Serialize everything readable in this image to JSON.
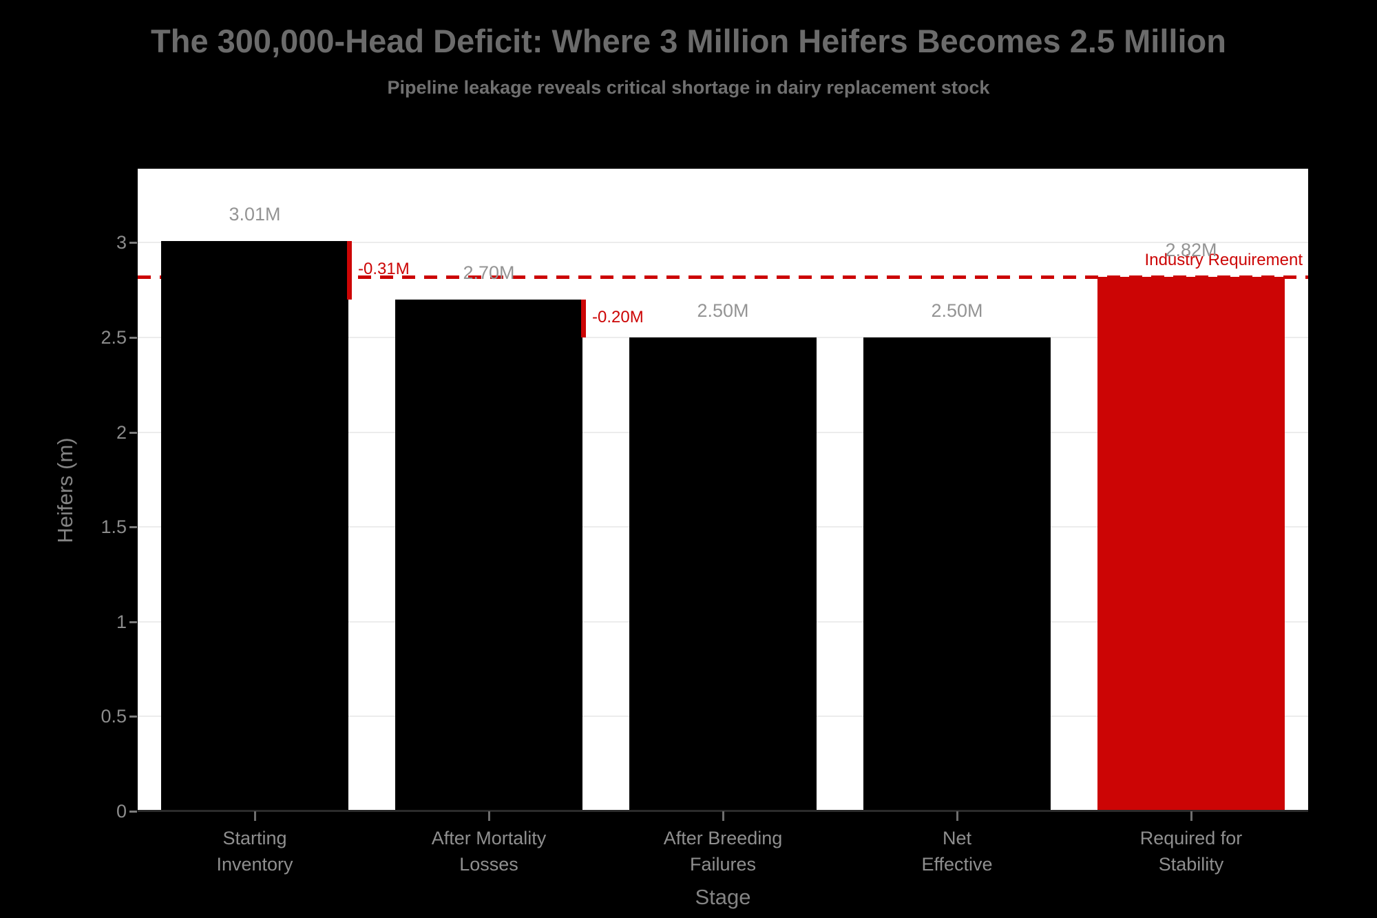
{
  "chart_data": {
    "type": "bar",
    "title": "The 300,000-Head Deficit: Where 3 Million Heifers Becomes 2.5 Million",
    "subtitle": "Pipeline leakage reveals critical shortage in dairy replacement stock",
    "xlabel": "Stage",
    "ylabel": "Heifers (m)",
    "categories": [
      "Starting\nInventory",
      "After Mortality\nLosses",
      "After Breeding\nFailures",
      "Net\nEffective",
      "Required for\nStability"
    ],
    "values": [
      3.01,
      2.7,
      2.5,
      2.5,
      2.82
    ],
    "bar_value_labels": [
      "3.01M",
      "2.70M",
      "2.50M",
      "2.50M",
      "2.82M"
    ],
    "bar_colors": [
      "#000000",
      "#000000",
      "#000000",
      "#000000",
      "#cc0505"
    ],
    "ylim": [
      0,
      3.39
    ],
    "yticks": [
      0,
      0.5,
      1,
      1.5,
      2,
      2.5,
      3
    ],
    "ytick_labels": [
      "0",
      "0.5",
      "1",
      "1.5",
      "2",
      "2.5",
      "3"
    ],
    "grid": true,
    "legend": "none",
    "reference_line": {
      "y": 2.82,
      "label": "Industry Requirement",
      "style": "dashed"
    },
    "loss_annotations": [
      {
        "label": "-0.31M",
        "delta": -0.31,
        "from": 3.01,
        "to": 2.7,
        "after_bar_index": 0
      },
      {
        "label": "-0.20M",
        "delta": -0.2,
        "from": 2.7,
        "to": 2.5,
        "after_bar_index": 1
      }
    ]
  },
  "colors": {
    "background": "#000000",
    "plot_background": "#ffffff",
    "gridline": "#ececec",
    "accent_red": "#cc0505",
    "bar_black": "#000000",
    "title_text": "#6b6b6b",
    "subtitle_text": "#707070",
    "axis_text": "#8c8c8c",
    "value_label_text": "#949494"
  }
}
